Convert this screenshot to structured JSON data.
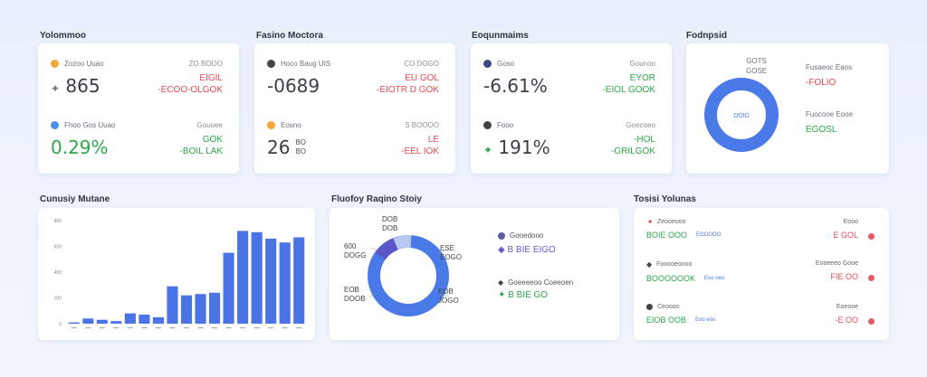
{
  "sections": {
    "s1": "Yolommoo",
    "s2": "Fasino Moctora",
    "s3": "Eoqunmaims",
    "s4": "Fodnpsid",
    "s5": "Cunusiy Mutane",
    "s6": "Fluofoy Raqino Stoiy",
    "s7": "Tosisi Yolunas"
  },
  "card1": {
    "m1": {
      "label": "Zozoo Uuao",
      "value": "865",
      "k": "ZO BOOO",
      "v": "EIGIL",
      "v2": "-ECOO-OLGOK"
    },
    "m2": {
      "label": "Fhoo Gos Uuao",
      "value": "0.29%",
      "k": "Gouoee",
      "v": "GOK",
      "v2": "-BOIL LAK"
    }
  },
  "card2": {
    "m1": {
      "label": "Hoco Baug UIS",
      "value": "-0689",
      "k": "CO DOGO",
      "v": "EU GOL",
      "v2": "-EIOTR D GOK"
    },
    "m2": {
      "label": "Eosno",
      "value": "26",
      "sub": "BO",
      "sub2": "BO",
      "k": "S BOOOO",
      "v": "LE",
      "v2": "-EEL IOK"
    }
  },
  "card3": {
    "m1": {
      "label": "Goso",
      "value": "-6.61%",
      "k": "Gounoo",
      "v": "EYOR",
      "v2": "-EIOL GOOK"
    },
    "m2": {
      "label": "Fooo",
      "value": "191%",
      "k": "Goecoeo",
      "v": "-HOL",
      "v2": "-GRILGOK"
    }
  },
  "card4": {
    "donut_top": "GOTS",
    "donut_top2": "GOSE",
    "donut_center": "DOID",
    "r1_label": "Fusaeoc Eaos",
    "r1_value": "-FOLIO",
    "r2_label": "Fuocooe Eooe",
    "r2_value": "EGOSL",
    "accent": "#4a7ae8"
  },
  "bar_chart": {
    "chart_data": {
      "type": "bar",
      "categories": [
        "",
        "",
        "",
        "",
        "",
        "",
        "",
        "",
        "",
        "",
        "",
        "",
        "",
        "",
        "",
        "",
        ""
      ],
      "values": [
        1,
        4,
        3,
        2,
        8,
        7,
        5,
        29,
        22,
        23,
        24,
        55,
        72,
        71,
        66,
        63,
        67
      ],
      "ylim": [
        0,
        80
      ],
      "yticks": [
        "0",
        "200",
        "400",
        "600",
        "800"
      ],
      "title": "Cunusiy Mutane"
    }
  },
  "donut_chart": {
    "labels": {
      "a1": "DOB",
      "a2": "DOB",
      "b1": "600",
      "b2": "DOGG",
      "c1": "ESE",
      "c2": "EOGO",
      "d1": "EOB",
      "d2": "DOOB",
      "e1": "EOB",
      "e2": "JOGO"
    },
    "legend": [
      {
        "name": "Gooedooo",
        "value": "B BIE EIGO"
      },
      {
        "name": "Goeeeeoo Coeeoen",
        "value": "B BIE GO"
      }
    ]
  },
  "table": {
    "rows": [
      {
        "name": "Zeooeooo",
        "value": "BOIE OOO",
        "extra": "EOOOOO",
        "side_k": "Eooo",
        "side_v": "E GOL"
      },
      {
        "name": "Fooooeoooo",
        "value": "BOOOOOOK",
        "extra": "Eoo oeo",
        "side_k": "Eooeeeo Gooe",
        "side_v": "FIE OO"
      },
      {
        "name": "Ceoooo",
        "value": "EIOB OOB",
        "extra": "Eoo eoo",
        "side_k": "Eoeooe",
        "side_v": "-E OO"
      }
    ]
  }
}
